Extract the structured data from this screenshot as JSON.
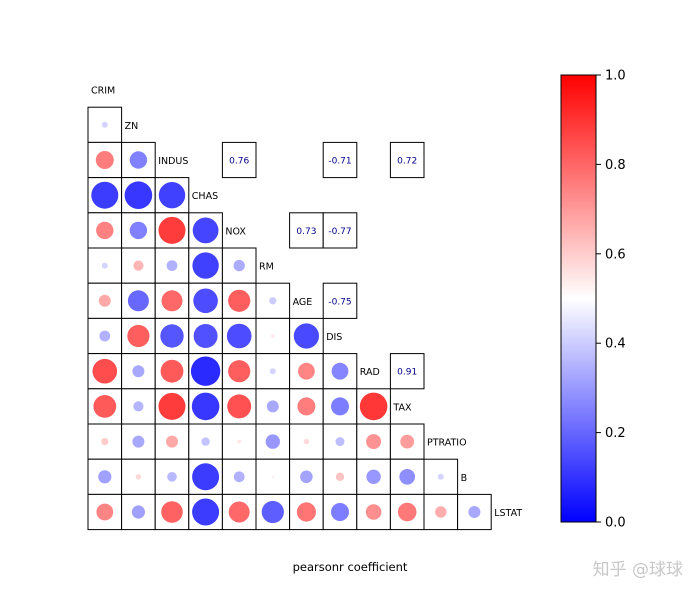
{
  "chart_data": {
    "type": "heatmap",
    "variables": [
      "CRIM",
      "ZN",
      "INDUS",
      "CHAS",
      "NOX",
      "RM",
      "AGE",
      "DIS",
      "RAD",
      "TAX",
      "PTRATIO",
      "B",
      "LSTAT"
    ],
    "lower_triangle_values": [
      [],
      [
        0.4
      ],
      [
        0.8,
        0.21
      ],
      [
        0.05,
        0.04,
        0.06
      ],
      [
        0.79,
        0.21,
        0.95,
        0.07
      ],
      [
        0.4,
        0.67,
        0.32,
        0.06,
        0.31
      ],
      [
        0.7,
        0.15,
        0.85,
        0.09,
        0.87,
        0.38
      ],
      [
        0.32,
        0.87,
        0.11,
        0.1,
        0.09,
        0.56,
        0.08
      ],
      [
        0.91,
        0.3,
        0.88,
        0.01,
        0.87,
        0.4,
        0.78,
        0.22
      ],
      [
        0.88,
        0.33,
        0.95,
        0.04,
        0.9,
        0.3,
        0.8,
        0.2,
        0.96
      ],
      [
        0.62,
        0.3,
        0.7,
        0.36,
        0.56,
        0.26,
        0.59,
        0.35,
        0.75,
        0.73
      ],
      [
        0.28,
        0.59,
        0.34,
        0.05,
        0.32,
        0.54,
        0.29,
        0.64,
        0.26,
        0.24,
        0.4
      ],
      [
        0.78,
        0.28,
        0.86,
        0.05,
        0.85,
        0.13,
        0.82,
        0.2,
        0.76,
        0.81,
        0.69,
        0.3
      ]
    ],
    "upper_annotations": [
      {
        "row": "INDUS",
        "col": "NOX",
        "text": "0.76"
      },
      {
        "row": "INDUS",
        "col": "DIS",
        "text": "-0.71"
      },
      {
        "row": "INDUS",
        "col": "TAX",
        "text": "0.72"
      },
      {
        "row": "NOX",
        "col": "AGE",
        "text": "0.73"
      },
      {
        "row": "NOX",
        "col": "DIS",
        "text": "-0.77"
      },
      {
        "row": "AGE",
        "col": "DIS",
        "text": "-0.75"
      },
      {
        "row": "RAD",
        "col": "TAX",
        "text": "0.91"
      }
    ],
    "xlabel": "pearsonr coefficient",
    "colorbar": {
      "range": [
        0.0,
        1.0
      ],
      "ticks": [
        "0.0",
        "0.2",
        "0.4",
        "0.6",
        "0.8",
        "1.0"
      ],
      "colormap": [
        "#0000ff",
        "#ffffff",
        "#ff0000"
      ]
    }
  },
  "watermark": "知乎 @球球"
}
